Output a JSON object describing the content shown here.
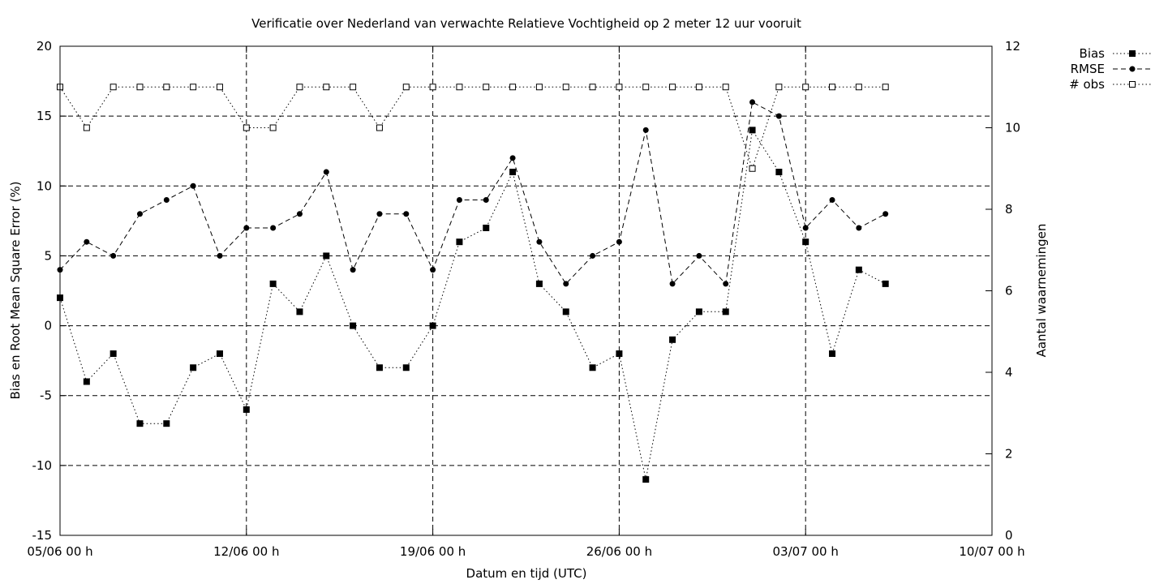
{
  "chart_data": {
    "type": "line",
    "title": "Verificatie over Nederland van verwachte Relatieve Vochtigheid op 2 meter 12 uur vooruit",
    "xlabel": "Datum en tijd (UTC)",
    "ylabel": "Bias en Root Mean Square Error (%)",
    "y2label": "Aantal waarnemingen",
    "xlim": [
      0,
      35
    ],
    "ylim": [
      -15,
      20
    ],
    "y2lim": [
      0,
      12
    ],
    "x_ticks": [
      {
        "x": 0,
        "label": "05/06 00 h"
      },
      {
        "x": 7,
        "label": "12/06 00 h"
      },
      {
        "x": 14,
        "label": "19/06 00 h"
      },
      {
        "x": 21,
        "label": "26/06 00 h"
      },
      {
        "x": 28,
        "label": "03/07 00 h"
      },
      {
        "x": 35,
        "label": "10/07 00 h"
      }
    ],
    "y_ticks": [
      "20",
      "15",
      "10",
      "5",
      "0",
      "-5",
      "-10",
      "-15"
    ],
    "y2_ticks": [
      "12",
      "10",
      "8",
      "6",
      "4",
      "2",
      "0"
    ],
    "grid": true,
    "legend_position": "top-right outside",
    "x": [
      0,
      1,
      2,
      3,
      4,
      5,
      6,
      7,
      8,
      9,
      10,
      11,
      12,
      13,
      14,
      15,
      16,
      17,
      18,
      19,
      20,
      21,
      22,
      23,
      24,
      25,
      26,
      27,
      28,
      29,
      30,
      31
    ],
    "series": [
      {
        "name": "Bias",
        "axis": "y",
        "style": "dotted line, filled square markers",
        "values": [
          2,
          -4,
          -2,
          -7,
          -7,
          -3,
          -2,
          -6,
          3,
          1,
          5,
          0,
          -3,
          -3,
          0,
          6,
          7,
          11,
          3,
          1,
          -3,
          -2,
          -11,
          -1,
          1,
          1,
          14,
          11,
          6,
          -2,
          4,
          3
        ]
      },
      {
        "name": "RMSE",
        "axis": "y",
        "style": "dashed line, filled circle markers",
        "values": [
          4,
          6,
          5,
          8,
          9,
          10,
          5,
          7,
          7,
          8,
          11,
          4,
          8,
          8,
          4,
          9,
          9,
          12,
          6,
          3,
          5,
          6,
          14,
          3,
          5,
          3,
          16,
          15,
          7,
          9,
          7,
          8
        ]
      },
      {
        "name": "# obs",
        "axis": "y2",
        "style": "dotted line, open square markers",
        "values": [
          11,
          10,
          11,
          11,
          11,
          11,
          11,
          10,
          10,
          11,
          11,
          11,
          10,
          11,
          11,
          11,
          11,
          11,
          11,
          11,
          11,
          11,
          11,
          11,
          11,
          11,
          9,
          11,
          11,
          11,
          11,
          11
        ]
      }
    ]
  }
}
